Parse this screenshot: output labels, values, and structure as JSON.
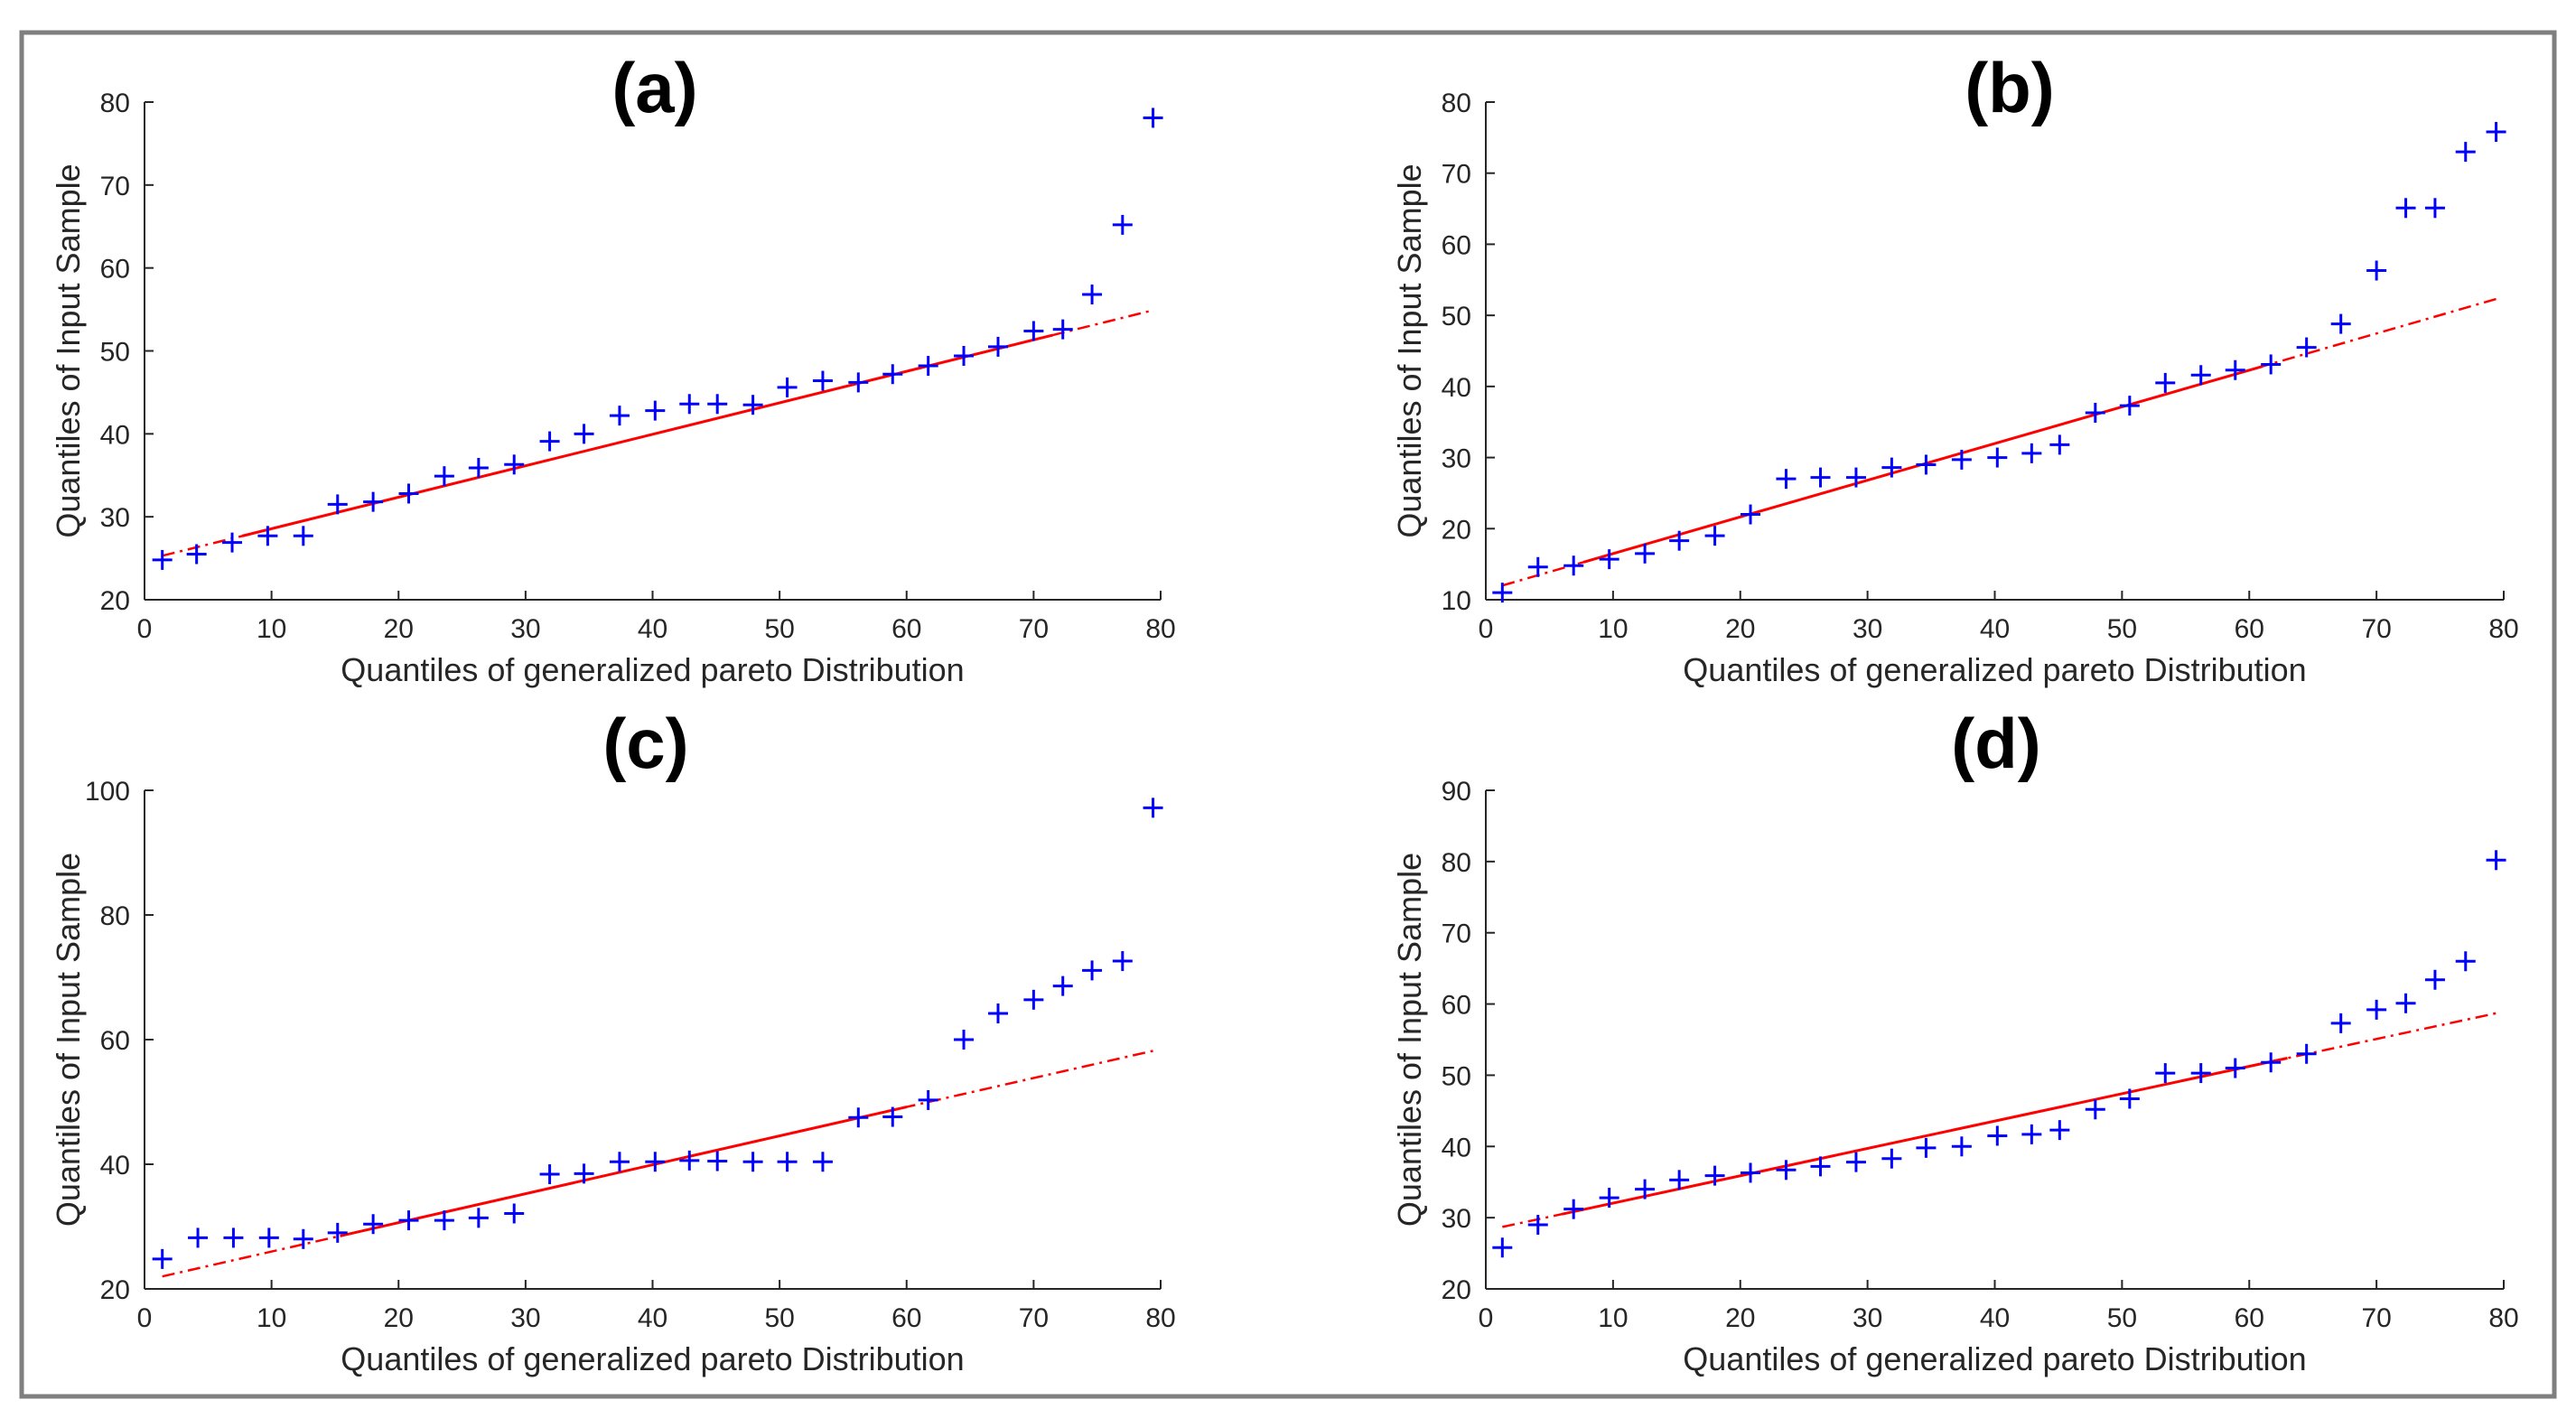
{
  "chart_data": [
    {
      "id": "a",
      "type": "scatter",
      "title": "(a)",
      "xlabel": "Quantiles of generalized pareto Distribution",
      "ylabel": "Quantiles of Input Sample",
      "xlim": [
        0,
        80
      ],
      "ylim": [
        20,
        80
      ],
      "xticks": [
        0,
        10,
        20,
        30,
        40,
        50,
        60,
        70,
        80
      ],
      "yticks": [
        20,
        30,
        40,
        50,
        60,
        70,
        80
      ],
      "x": [
        1.4,
        4.1,
        6.9,
        9.7,
        12.5,
        15.2,
        18.0,
        20.8,
        23.6,
        26.3,
        29.1,
        31.9,
        34.6,
        37.4,
        40.2,
        42.9,
        45.1,
        47.9,
        50.6,
        53.4,
        56.2,
        58.9,
        61.7,
        64.5,
        67.2,
        70.0,
        72.3,
        74.6,
        77.0,
        79.4
      ],
      "y": [
        24.8,
        25.5,
        26.9,
        27.7,
        27.7,
        31.5,
        31.8,
        32.8,
        34.9,
        35.9,
        36.3,
        39.1,
        40.0,
        42.2,
        42.8,
        43.6,
        43.6,
        43.5,
        45.6,
        46.4,
        46.2,
        47.2,
        48.2,
        49.4,
        50.5,
        52.4,
        52.6,
        56.8,
        65.2,
        78.1
      ],
      "fit_line": {
        "x": [
          1.4,
          79.4
        ],
        "y": [
          25.3,
          54.9
        ],
        "solid_range": [
          7.7,
          71.5
        ]
      }
    },
    {
      "id": "b",
      "type": "scatter",
      "title": "(b)",
      "xlabel": "Quantiles of generalized pareto Distribution",
      "ylabel": "Quantiles of Input Sample",
      "xlim": [
        0,
        80
      ],
      "ylim": [
        10,
        80
      ],
      "xticks": [
        0,
        10,
        20,
        30,
        40,
        50,
        60,
        70,
        80
      ],
      "yticks": [
        10,
        20,
        30,
        40,
        50,
        60,
        70,
        80
      ],
      "x": [
        1.3,
        4.1,
        6.9,
        9.7,
        12.5,
        15.2,
        18.0,
        20.8,
        23.6,
        26.3,
        29.1,
        31.9,
        34.6,
        37.4,
        40.2,
        42.9,
        45.1,
        47.9,
        50.6,
        53.4,
        56.2,
        58.9,
        61.7,
        64.5,
        67.2,
        70.0,
        72.3,
        74.6,
        77.0,
        79.4
      ],
      "y": [
        11.0,
        14.6,
        14.8,
        15.7,
        16.5,
        18.3,
        19.0,
        22.0,
        27.0,
        27.2,
        27.2,
        28.6,
        29.0,
        29.7,
        30.0,
        30.6,
        31.8,
        36.3,
        37.3,
        40.5,
        41.6,
        42.3,
        43.1,
        45.5,
        48.8,
        56.3,
        65.1,
        65.1,
        73.0,
        75.8
      ],
      "fit_line": {
        "x": [
          1.3,
          79.4
        ],
        "y": [
          12.0,
          52.3
        ],
        "solid_range": [
          7.7,
          61.0
        ]
      }
    },
    {
      "id": "c",
      "type": "scatter",
      "title": "(c)",
      "xlabel": "Quantiles of generalized pareto Distribution",
      "ylabel": "Quantiles of Input Sample",
      "xlim": [
        0,
        80
      ],
      "ylim": [
        20,
        100
      ],
      "xticks": [
        0,
        10,
        20,
        30,
        40,
        50,
        60,
        70,
        80
      ],
      "yticks": [
        20,
        40,
        60,
        80,
        100
      ],
      "x": [
        1.4,
        4.2,
        7.0,
        9.8,
        12.5,
        15.2,
        18.0,
        20.8,
        23.6,
        26.3,
        29.1,
        31.9,
        34.6,
        37.4,
        40.2,
        42.9,
        45.1,
        47.9,
        50.6,
        53.4,
        56.2,
        58.9,
        61.7,
        64.5,
        67.2,
        70.0,
        72.3,
        74.6,
        77.0,
        79.4
      ],
      "y": [
        24.8,
        28.2,
        28.2,
        28.2,
        28.0,
        29.0,
        30.4,
        31.0,
        31.0,
        31.4,
        32.1,
        38.4,
        38.5,
        40.4,
        40.4,
        40.6,
        40.5,
        40.4,
        40.4,
        40.4,
        47.5,
        47.6,
        50.3,
        60.0,
        64.2,
        66.4,
        68.6,
        71.1,
        72.6,
        97.2
      ],
      "fit_line": {
        "x": [
          1.4,
          79.4
        ],
        "y": [
          22.0,
          58.2
        ],
        "solid_range": [
          15.4,
          60.0
        ]
      }
    },
    {
      "id": "d",
      "type": "scatter",
      "title": "(d)",
      "xlabel": "Quantiles of generalized pareto Distribution",
      "ylabel": "Quantiles of Input Sample",
      "xlim": [
        0,
        80
      ],
      "ylim": [
        20,
        90
      ],
      "xticks": [
        0,
        10,
        20,
        30,
        40,
        50,
        60,
        70,
        80
      ],
      "yticks": [
        20,
        30,
        40,
        50,
        60,
        70,
        80,
        90
      ],
      "x": [
        1.3,
        4.1,
        6.9,
        9.7,
        12.5,
        15.2,
        18.0,
        20.8,
        23.6,
        26.3,
        29.1,
        31.9,
        34.6,
        37.4,
        40.2,
        42.9,
        45.1,
        47.9,
        50.6,
        53.4,
        56.2,
        58.9,
        61.7,
        64.5,
        67.2,
        70.0,
        72.3,
        74.6,
        77.0,
        79.4
      ],
      "y": [
        25.8,
        29.0,
        31.2,
        32.8,
        34.0,
        35.3,
        35.9,
        36.3,
        36.7,
        37.2,
        37.8,
        38.3,
        39.8,
        40.0,
        41.5,
        41.7,
        42.3,
        45.2,
        46.7,
        50.3,
        50.3,
        51.0,
        51.8,
        53.0,
        57.3,
        59.2,
        60.1,
        63.4,
        66.0,
        80.2
      ],
      "fit_line": {
        "x": [
          1.3,
          79.4
        ],
        "y": [
          28.7,
          58.7
        ],
        "solid_range": [
          6.0,
          63.0
        ]
      }
    }
  ]
}
